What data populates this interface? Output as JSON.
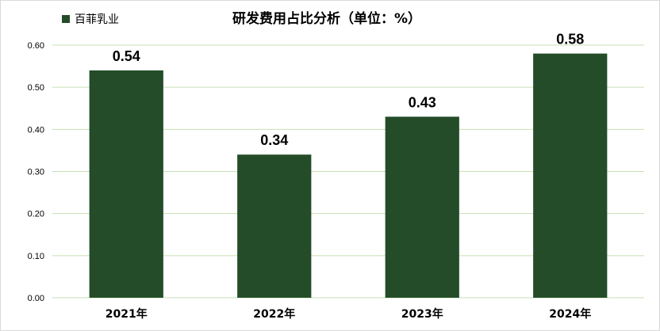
{
  "chart_data": {
    "type": "bar",
    "title": "研发费用占比分析（单位：%）",
    "categories": [
      "2021年",
      "2022年",
      "2023年",
      "2024年"
    ],
    "series": [
      {
        "name": "百菲乳业",
        "values": [
          0.54,
          0.34,
          0.43,
          0.58
        ],
        "color": "#244c29"
      }
    ],
    "data_labels": [
      "0.54",
      "0.34",
      "0.43",
      "0.58"
    ],
    "y_ticks": [
      "0.00",
      "0.10",
      "0.20",
      "0.30",
      "0.40",
      "0.50",
      "0.60"
    ],
    "ylim": [
      0,
      0.6
    ],
    "grid": true,
    "grid_color": "#c6e0b4",
    "legend_position": "top-left",
    "xlabel": "",
    "ylabel": ""
  }
}
